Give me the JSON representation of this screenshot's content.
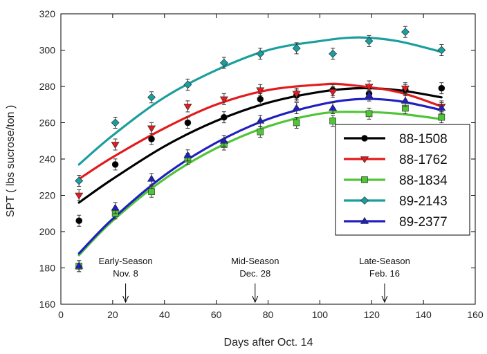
{
  "chart_data": {
    "type": "scatter",
    "title": "",
    "xlabel": "Days after Oct. 14",
    "ylabel": "SPT ( lbs sucrose/ton )",
    "xlim": [
      0,
      160
    ],
    "ylim": [
      160,
      320
    ],
    "xticks": [
      "0",
      "20",
      "40",
      "60",
      "80",
      "100",
      "120",
      "140",
      "160"
    ],
    "yticks": [
      "160",
      "180",
      "200",
      "220",
      "240",
      "260",
      "280",
      "300",
      "320"
    ],
    "grid": false,
    "legend_position": "right",
    "series": [
      {
        "name": "88-1508",
        "color": "#000000",
        "marker": "circle",
        "points": [
          [
            7,
            206
          ],
          [
            21,
            237
          ],
          [
            35,
            251
          ],
          [
            49,
            260
          ],
          [
            63,
            263
          ],
          [
            77,
            273
          ],
          [
            91,
            275
          ],
          [
            105,
            278
          ],
          [
            119,
            276
          ],
          [
            133,
            278
          ],
          [
            147,
            279
          ]
        ],
        "fit": [
          [
            7,
            216
          ],
          [
            20,
            229
          ],
          [
            40,
            247
          ],
          [
            60,
            261
          ],
          [
            80,
            271
          ],
          [
            100,
            277
          ],
          [
            115,
            279
          ],
          [
            130,
            278
          ],
          [
            147,
            274
          ]
        ]
      },
      {
        "name": "88-1762",
        "color": "#e41a1c",
        "marker": "triangle-down",
        "points": [
          [
            7,
            220
          ],
          [
            21,
            248
          ],
          [
            35,
            257
          ],
          [
            49,
            269
          ],
          [
            63,
            273
          ],
          [
            77,
            278
          ],
          [
            91,
            276
          ],
          [
            105,
            277
          ],
          [
            119,
            280
          ],
          [
            133,
            279
          ],
          [
            147,
            269
          ]
        ],
        "fit": [
          [
            7,
            229
          ],
          [
            20,
            241
          ],
          [
            40,
            257
          ],
          [
            60,
            270
          ],
          [
            80,
            278
          ],
          [
            100,
            281
          ],
          [
            110,
            281
          ],
          [
            130,
            277
          ],
          [
            147,
            269
          ]
        ]
      },
      {
        "name": "88-1834",
        "color": "#4fc537",
        "marker": "square",
        "points": [
          [
            7,
            181
          ],
          [
            21,
            210
          ],
          [
            35,
            222
          ],
          [
            49,
            240
          ],
          [
            63,
            248
          ],
          [
            77,
            255
          ],
          [
            91,
            260
          ],
          [
            105,
            261
          ],
          [
            119,
            265
          ],
          [
            133,
            268
          ],
          [
            147,
            263
          ]
        ],
        "fit": [
          [
            7,
            187
          ],
          [
            20,
            206
          ],
          [
            40,
            229
          ],
          [
            60,
            246
          ],
          [
            80,
            258
          ],
          [
            100,
            265
          ],
          [
            115,
            266
          ],
          [
            130,
            265
          ],
          [
            147,
            262
          ]
        ]
      },
      {
        "name": "89-2143",
        "color": "#1b9e9e",
        "marker": "diamond",
        "points": [
          [
            7,
            228
          ],
          [
            21,
            260
          ],
          [
            35,
            274
          ],
          [
            49,
            281
          ],
          [
            63,
            293
          ],
          [
            77,
            298
          ],
          [
            91,
            301
          ],
          [
            105,
            298
          ],
          [
            119,
            305
          ],
          [
            133,
            310
          ],
          [
            147,
            300
          ]
        ],
        "fit": [
          [
            7,
            237
          ],
          [
            20,
            253
          ],
          [
            40,
            274
          ],
          [
            60,
            289
          ],
          [
            80,
            300
          ],
          [
            100,
            305
          ],
          [
            115,
            307
          ],
          [
            130,
            305
          ],
          [
            147,
            299
          ]
        ]
      },
      {
        "name": "89-2377",
        "color": "#2020c0",
        "marker": "triangle-up",
        "points": [
          [
            7,
            181
          ],
          [
            21,
            213
          ],
          [
            35,
            229
          ],
          [
            49,
            242
          ],
          [
            63,
            250
          ],
          [
            77,
            261
          ],
          [
            91,
            268
          ],
          [
            105,
            268
          ],
          [
            119,
            275
          ],
          [
            133,
            272
          ],
          [
            147,
            268
          ]
        ],
        "fit": [
          [
            7,
            188
          ],
          [
            20,
            207
          ],
          [
            40,
            231
          ],
          [
            60,
            249
          ],
          [
            80,
            262
          ],
          [
            100,
            270
          ],
          [
            115,
            273
          ],
          [
            130,
            272
          ],
          [
            147,
            267
          ]
        ]
      }
    ],
    "annotations": [
      {
        "line1": "Early-Season",
        "line2": "Nov. 8",
        "x": 25
      },
      {
        "line1": "Mid-Season",
        "line2": "Dec. 28",
        "x": 75
      },
      {
        "line1": "Late-Season",
        "line2": "Feb. 16",
        "x": 125
      }
    ]
  }
}
